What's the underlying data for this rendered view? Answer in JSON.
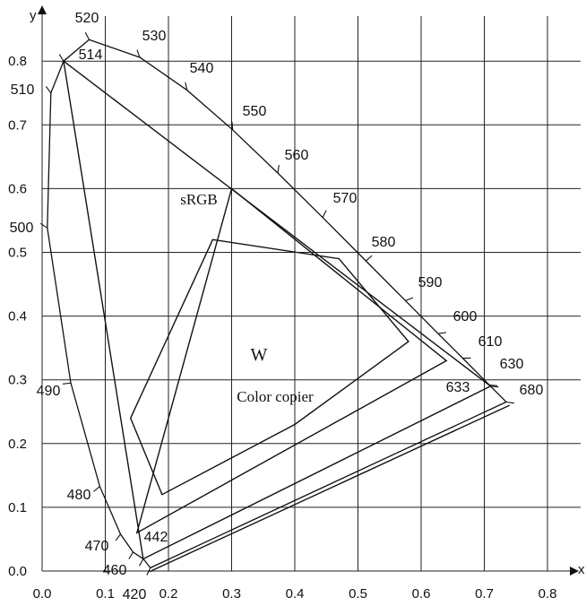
{
  "chart_data": {
    "type": "scatter",
    "title": "",
    "xlabel": "x",
    "ylabel": "y",
    "xlim": [
      0.0,
      0.8
    ],
    "ylim": [
      0.0,
      0.8
    ],
    "x_ticks": [
      "0.0",
      "0.1",
      "0.2",
      "0.3",
      "0.4",
      "0.5",
      "0.6",
      "0.7",
      "0.8"
    ],
    "y_ticks": [
      "0.0",
      "0.1",
      "0.2",
      "0.3",
      "0.4",
      "0.5",
      "0.6",
      "0.7",
      "0.8"
    ],
    "grid": true,
    "spectral_locus": [
      {
        "wl": "420",
        "x": 0.1714,
        "y": 0.0051
      },
      {
        "wl": "442",
        "x": 0.1601,
        "y": 0.0191
      },
      {
        "wl": "460",
        "x": 0.144,
        "y": 0.0297
      },
      {
        "wl": "470",
        "x": 0.1241,
        "y": 0.0578
      },
      {
        "wl": "480",
        "x": 0.0913,
        "y": 0.1327
      },
      {
        "wl": "490",
        "x": 0.0454,
        "y": 0.295
      },
      {
        "wl": "500",
        "x": 0.0082,
        "y": 0.5384
      },
      {
        "wl": "510",
        "x": 0.0139,
        "y": 0.7502
      },
      {
        "wl": "514",
        "x": 0.034,
        "y": 0.8
      },
      {
        "wl": "520",
        "x": 0.0743,
        "y": 0.8338
      },
      {
        "wl": "530",
        "x": 0.1547,
        "y": 0.8059
      },
      {
        "wl": "540",
        "x": 0.2296,
        "y": 0.7543
      },
      {
        "wl": "550",
        "x": 0.3016,
        "y": 0.6923
      },
      {
        "wl": "560",
        "x": 0.3731,
        "y": 0.6245
      },
      {
        "wl": "570",
        "x": 0.4441,
        "y": 0.5547
      },
      {
        "wl": "580",
        "x": 0.5125,
        "y": 0.4866
      },
      {
        "wl": "590",
        "x": 0.5752,
        "y": 0.4242
      },
      {
        "wl": "600",
        "x": 0.627,
        "y": 0.3725
      },
      {
        "wl": "610",
        "x": 0.6658,
        "y": 0.334
      },
      {
        "wl": "630",
        "x": 0.7079,
        "y": 0.292
      },
      {
        "wl": "633",
        "x": 0.71,
        "y": 0.29
      },
      {
        "wl": "680",
        "x": 0.7347,
        "y": 0.2653
      }
    ],
    "wavelength_labels": [
      "420",
      "442",
      "460",
      "470",
      "480",
      "490",
      "500",
      "510",
      "514",
      "520",
      "530",
      "540",
      "550",
      "560",
      "570",
      "580",
      "590",
      "600",
      "610",
      "630",
      "633",
      "680"
    ],
    "series": [
      {
        "points": [
          [
            0.034,
            0.8
          ],
          [
            0.71,
            0.29
          ],
          [
            0.16,
            0.019
          ]
        ]
      },
      {
        "name": "sRGB",
        "points": [
          [
            0.64,
            0.33
          ],
          [
            0.3,
            0.6
          ],
          [
            0.15,
            0.06
          ]
        ]
      },
      {
        "name": "Color copier",
        "points": [
          [
            0.27,
            0.52
          ],
          [
            0.47,
            0.49
          ],
          [
            0.58,
            0.36
          ],
          [
            0.4,
            0.23
          ],
          [
            0.19,
            0.12
          ],
          [
            0.14,
            0.24
          ]
        ]
      }
    ],
    "annotations": {
      "white_point": "W",
      "white_point_xy": [
        0.3127,
        0.329
      ]
    }
  }
}
